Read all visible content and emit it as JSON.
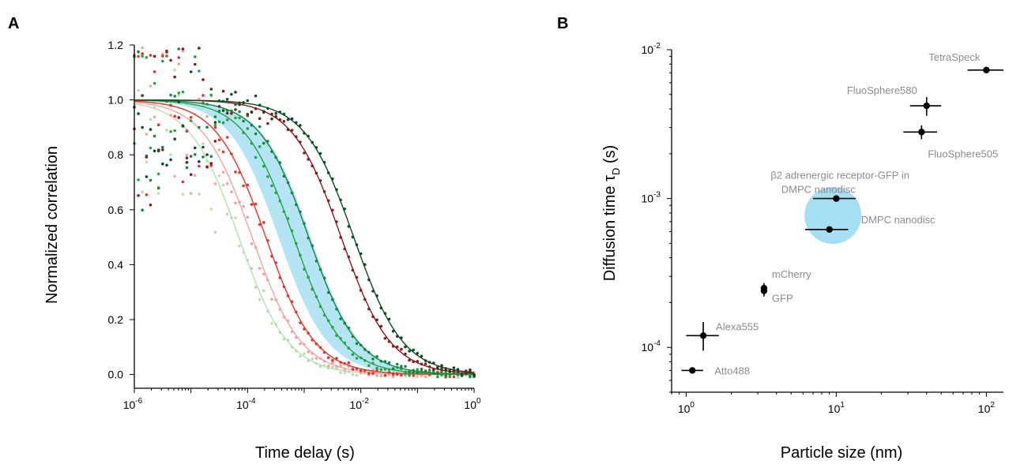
{
  "panels": {
    "a_label": "A",
    "b_label": "B"
  },
  "colors": {
    "axis": "#000000",
    "annotation_text": "#8c8c8c",
    "band": "#5bc4e9",
    "light_green": "#b9ddb0",
    "mid_green": "#23a542",
    "green": "#0f8a3c",
    "dark_green": "#0d4d24",
    "light_red": "#f3a39d",
    "red": "#e6332a",
    "dark_red": "#8b1a1a"
  },
  "chart_data": [
    {
      "type": "scatter",
      "panel": "A",
      "xlabel": "Time delay (s)",
      "ylabel": "Normalized correlation",
      "x_scale": "log",
      "xlim": [
        1e-06,
        1
      ],
      "ylim": [
        -0.05,
        1.2
      ],
      "x_ticks": [
        1e-06,
        0.0001,
        0.01,
        1
      ],
      "x_tick_labels": [
        {
          "base": "10",
          "exp": "-6"
        },
        {
          "base": "10",
          "exp": "-4"
        },
        {
          "base": "10",
          "exp": "-2"
        },
        {
          "base": "10",
          "exp": "0"
        }
      ],
      "y_ticks": [
        "0.0",
        "0.2",
        "0.4",
        "0.6",
        "0.8",
        "1.0",
        "1.2"
      ],
      "grid": false,
      "shaded_band": {
        "tau_low": 0.00035,
        "tau_high": 0.0013,
        "color": "band"
      },
      "series": [
        {
          "color": "light_green",
          "tau": 7e-05
        },
        {
          "color": "light_red",
          "tau": 0.00012
        },
        {
          "color": "red",
          "tau": 0.00021
        },
        {
          "color": "mid_green",
          "tau": 0.00065
        },
        {
          "color": "green",
          "tau": 0.0012
        },
        {
          "color": "dark_red",
          "tau": 0.0045
        },
        {
          "color": "dark_green",
          "tau": 0.0075
        }
      ]
    },
    {
      "type": "scatter",
      "panel": "B",
      "xlabel": "Particle size (nm)",
      "ylabel": "Diffusion time τ",
      "ylabel_sub": "D",
      "ylabel_unit": "(s)",
      "x_scale": "log",
      "y_scale": "log",
      "xlim": [
        0.8,
        130
      ],
      "ylim": [
        5e-05,
        0.01
      ],
      "x_ticks": [
        1,
        10,
        100
      ],
      "x_tick_labels": [
        {
          "base": "10",
          "exp": "0"
        },
        {
          "base": "10",
          "exp": "1"
        },
        {
          "base": "10",
          "exp": "2"
        }
      ],
      "y_ticks": [
        0.0001,
        0.001,
        0.01
      ],
      "y_tick_labels": [
        {
          "base": "10",
          "exp": "-4"
        },
        {
          "base": "10",
          "exp": "-3"
        },
        {
          "base": "10",
          "exp": "-2"
        }
      ],
      "highlight_circle": {
        "x": 9.5,
        "y": 0.00077
      },
      "points": [
        {
          "label": "TetraSpeck",
          "x": 100,
          "y": 0.0073,
          "xerr": [
            75,
            130
          ],
          "yerr": [
            0.0071,
            0.0075
          ]
        },
        {
          "label": "FluoSphere580",
          "x": 40,
          "y": 0.0042,
          "xerr": [
            31,
            50
          ],
          "yerr": [
            0.0036,
            0.0048
          ]
        },
        {
          "label": "FluoSphere505",
          "x": 37,
          "y": 0.0028,
          "xerr": [
            28,
            47
          ],
          "yerr": [
            0.0025,
            0.0031
          ]
        },
        {
          "label": "β2 adrenergic receptor-GFP in",
          "label2": "DMPC nanodisc",
          "x": 10,
          "y": 0.001,
          "xerr": [
            7,
            13.5
          ],
          "yerr": [
            0.00098,
            0.00102
          ]
        },
        {
          "label": "DMPC nanodisc",
          "x": 9,
          "y": 0.00062,
          "xerr": [
            6.2,
            12
          ],
          "yerr": [
            0.0006,
            0.00064
          ]
        },
        {
          "label": "mCherry",
          "x": 3.3,
          "y": 0.00025,
          "xerr": [
            3.2,
            3.4
          ],
          "yerr": [
            0.00023,
            0.00027
          ]
        },
        {
          "label": "GFP",
          "x": 3.3,
          "y": 0.00024,
          "xerr": [
            3.2,
            3.4
          ],
          "yerr": [
            0.00022,
            0.00026
          ]
        },
        {
          "label": "Alexa555",
          "x": 1.3,
          "y": 0.00012,
          "xerr": [
            1.0,
            1.65
          ],
          "yerr": [
            9.5e-05,
            0.000148
          ]
        },
        {
          "label": "Atto488",
          "x": 1.1,
          "y": 7e-05,
          "xerr": [
            0.93,
            1.3
          ],
          "yerr": [
            7e-05,
            7e-05
          ]
        }
      ]
    }
  ]
}
